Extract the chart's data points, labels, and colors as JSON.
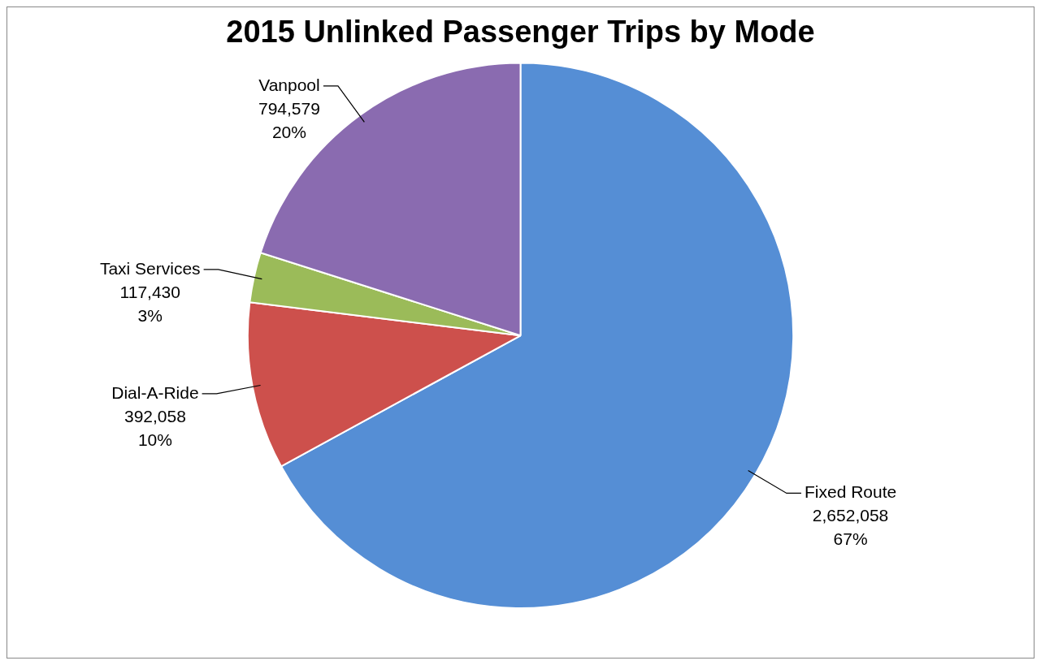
{
  "chart_data": {
    "type": "pie",
    "title": "2015 Unlinked Passenger Trips by Mode",
    "categories": [
      "Fixed Route",
      "Dial-A-Ride",
      "Taxi Services",
      "Vanpool"
    ],
    "values": [
      2652058,
      392058,
      117430,
      794579
    ],
    "colors": [
      "#558ed5",
      "#cd504c",
      "#9bbb59",
      "#8a6bb0"
    ],
    "value_labels": [
      "2,652,058\n67%",
      "392,058\n10%",
      "117,430\n3%",
      "794,579\n20%"
    ],
    "legend": false
  }
}
